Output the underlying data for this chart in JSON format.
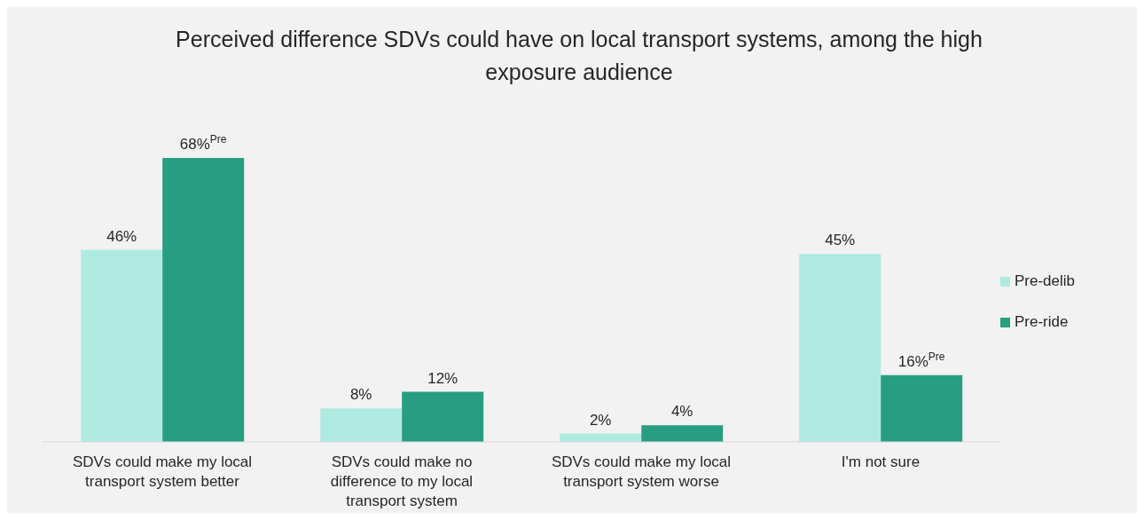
{
  "chart_data": {
    "type": "bar",
    "title": "Perceived difference SDVs could have on local transport systems, among the high exposure audience",
    "categories": [
      "SDVs could make my local transport system better",
      "SDVs could make no difference to my local transport system",
      "SDVs could make my local transport system worse",
      "I'm not sure"
    ],
    "series": [
      {
        "name": "Pre-delib",
        "color": "#afeae0",
        "values": [
          46,
          8,
          2,
          45
        ],
        "value_labels": [
          "46%",
          "8%",
          "2%",
          "45%"
        ]
      },
      {
        "name": "Pre-ride",
        "color": "#279e81",
        "values": [
          68,
          12,
          4,
          16
        ],
        "value_labels": [
          "68%$^{Pre}$",
          "12%",
          "4%",
          "16%$^{Pre}$"
        ]
      }
    ],
    "legend": "right"
  }
}
